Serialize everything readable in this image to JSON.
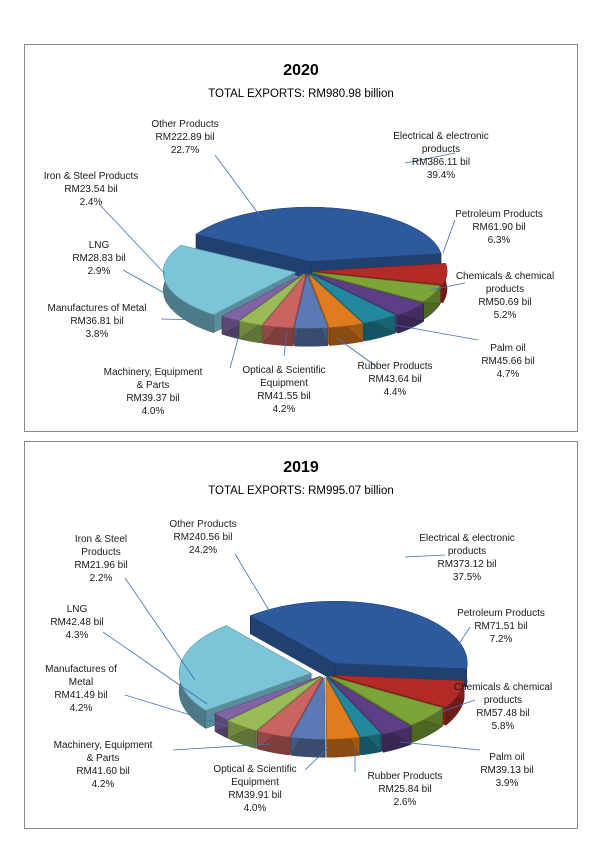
{
  "chart_data": [
    {
      "type": "pie",
      "title": "2020",
      "subtitle": "TOTAL EXPORTS: RM980.98  billion",
      "slices": [
        {
          "name": "Electrical & electronic products",
          "value": 386.11,
          "value_label": "RM386.11 bil",
          "pct": "39.4%",
          "color": "#2d5a9c"
        },
        {
          "name": "Petroleum Products",
          "value": 61.9,
          "value_label": "RM61.90 bil",
          "pct": "6.3%",
          "color": "#b32b27"
        },
        {
          "name": "Chemicals & chemical products",
          "value": 50.69,
          "value_label": "RM50.69 bil",
          "pct": "5.2%",
          "color": "#7ca437"
        },
        {
          "name": "Palm oil",
          "value": 45.66,
          "value_label": "RM45.66 bil",
          "pct": "4.7%",
          "color": "#5e3e86"
        },
        {
          "name": "Rubber Products",
          "value": 43.64,
          "value_label": "RM43.64 bil",
          "pct": "4.4%",
          "color": "#22889e"
        },
        {
          "name": "Optical & Scientific Equipment",
          "value": 41.55,
          "value_label": "RM41.55 bil",
          "pct": "4.2%",
          "color": "#e07b1e"
        },
        {
          "name": "Machinery, Equipment & Parts",
          "value": 39.37,
          "value_label": "RM39.37 bil",
          "pct": "4.0%",
          "color": "#5b7ab5"
        },
        {
          "name": "Manufactures of Metal",
          "value": 36.81,
          "value_label": "RM36.81 bil",
          "pct": "3.8%",
          "color": "#c96462"
        },
        {
          "name": "LNG",
          "value": 28.83,
          "value_label": "RM28.83 bil",
          "pct": "2.9%",
          "color": "#9bbb59"
        },
        {
          "name": "Iron & Steel Products",
          "value": 23.54,
          "value_label": "RM23.54 bil",
          "pct": "2.4%",
          "color": "#8064a2"
        },
        {
          "name": "Other Products",
          "value": 222.89,
          "value_label": "RM222.89 bil",
          "pct": "22.7%",
          "color": "#7cc4d8"
        }
      ],
      "labels": [
        {
          "lines": [
            "Electrical & electronic",
            "products",
            "RM386.11 bil",
            "39.4%"
          ]
        },
        {
          "lines": [
            "Petroleum Products",
            "RM61.90 bil",
            "6.3%"
          ]
        },
        {
          "lines": [
            "Chemicals & chemical",
            "products",
            "RM50.69 bil",
            "5.2%"
          ]
        },
        {
          "lines": [
            "Palm oil",
            "RM45.66 bil",
            "4.7%"
          ]
        },
        {
          "lines": [
            "Rubber Products",
            "RM43.64 bil",
            "4.4%"
          ]
        },
        {
          "lines": [
            "Optical & Scientific",
            "Equipment",
            "RM41.55 bil",
            "4.2%"
          ]
        },
        {
          "lines": [
            "Machinery, Equipment",
            "& Parts",
            "RM39.37 bil",
            "4.0%"
          ]
        },
        {
          "lines": [
            "Manufactures of Metal",
            "RM36.81 bil",
            "3.8%"
          ]
        },
        {
          "lines": [
            "LNG",
            "RM28.83 bil",
            "2.9%"
          ]
        },
        {
          "lines": [
            "Iron & Steel Products",
            "RM23.54 bil",
            "2.4%"
          ]
        },
        {
          "lines": [
            "Other Products",
            "RM222.89 bil",
            "22.7%"
          ]
        }
      ]
    },
    {
      "type": "pie",
      "title": "2019",
      "subtitle": "TOTAL EXPORTS: RM995.07  billion",
      "slices": [
        {
          "name": "Electrical & electronic products",
          "value": 373.12,
          "value_label": "RM373.12 bil",
          "pct": "37.5%",
          "color": "#2d5a9c"
        },
        {
          "name": "Petroleum Products",
          "value": 71.51,
          "value_label": "RM71.51 bil",
          "pct": "7.2%",
          "color": "#b32b27"
        },
        {
          "name": "Chemicals & chemical products",
          "value": 57.48,
          "value_label": "RM57.48 bil",
          "pct": "5.8%",
          "color": "#7ca437"
        },
        {
          "name": "Palm oil",
          "value": 39.13,
          "value_label": "RM39.13 bil",
          "pct": "3.9%",
          "color": "#5e3e86"
        },
        {
          "name": "Rubber Products",
          "value": 25.84,
          "value_label": "RM25.84 bil",
          "pct": "2.6%",
          "color": "#22889e"
        },
        {
          "name": "Optical & Scientific Equipment",
          "value": 39.91,
          "value_label": "RM39.91 bil",
          "pct": "4.0%",
          "color": "#e07b1e"
        },
        {
          "name": "Machinery, Equipment & Parts",
          "value": 41.6,
          "value_label": "RM41.60 bil",
          "pct": "4.2%",
          "color": "#5b7ab5"
        },
        {
          "name": "Manufactures of Metal",
          "value": 41.49,
          "value_label": "RM41.49 bil",
          "pct": "4.2%",
          "color": "#c96462"
        },
        {
          "name": "LNG",
          "value": 42.48,
          "value_label": "RM42.48 bil",
          "pct": "4.3%",
          "color": "#9bbb59"
        },
        {
          "name": "Iron & Steel Products",
          "value": 21.96,
          "value_label": "RM21.96 bil",
          "pct": "2.2%",
          "color": "#8064a2"
        },
        {
          "name": "Other Products",
          "value": 240.56,
          "value_label": "RM240.56 bil",
          "pct": "24.2%",
          "color": "#7cc4d8"
        }
      ],
      "labels": [
        {
          "lines": [
            "Electrical & electronic",
            "products",
            "RM373.12 bil",
            "37.5%"
          ]
        },
        {
          "lines": [
            "Petroleum Products",
            "RM71.51 bil",
            "7.2%"
          ]
        },
        {
          "lines": [
            "Chemicals & chemical",
            "products",
            "RM57.48 bil",
            "5.8%"
          ]
        },
        {
          "lines": [
            "Palm oil",
            "RM39.13 bil",
            "3.9%"
          ]
        },
        {
          "lines": [
            "Rubber Products",
            "RM25.84 bil",
            "2.6%"
          ]
        },
        {
          "lines": [
            "Optical & Scientific",
            "Equipment",
            "RM39.91 bil",
            "4.0%"
          ]
        },
        {
          "lines": [
            "Machinery, Equipment",
            "& Parts",
            "RM41.60 bil",
            "4.2%"
          ]
        },
        {
          "lines": [
            "Manufactures of",
            "Metal",
            "RM41.49 bil",
            "4.2%"
          ]
        },
        {
          "lines": [
            "LNG",
            "RM42.48 bil",
            "4.3%"
          ]
        },
        {
          "lines": [
            "Iron & Steel",
            "Products",
            "RM21.96 bil",
            "2.2%"
          ]
        },
        {
          "lines": [
            "Other Products",
            "RM240.56 bil",
            "24.2%"
          ]
        }
      ]
    }
  ]
}
